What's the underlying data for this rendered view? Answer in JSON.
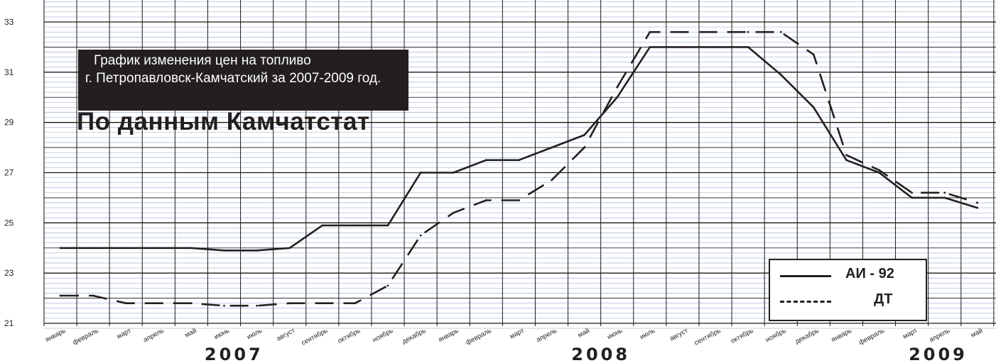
{
  "chart_data": {
    "type": "line",
    "title_line1": "График изменения цен на топливо",
    "title_line2": "г. Петропавловск-Камчатский за 2007-2009 год.",
    "subtitle": "По данным Камчатстат",
    "ylim": [
      21,
      33
    ],
    "yticks": [
      "21",
      "23",
      "25",
      "27",
      "29",
      "31",
      "33"
    ],
    "categories": [
      "январь",
      "февраль",
      "март",
      "апрель",
      "май",
      "июнь",
      "июль",
      "август",
      "сентябрь",
      "октябрь",
      "ноябрь",
      "декабрь",
      "январь",
      "февраль",
      "март",
      "апрель",
      "май",
      "июнь",
      "июль",
      "август",
      "сентябрь",
      "октябрь",
      "ноябрь",
      "декабрь",
      "январь",
      "февраль",
      "март",
      "апрель",
      "май"
    ],
    "years": [
      {
        "label": "2007",
        "at": 5.3
      },
      {
        "label": "2008",
        "at": 16.5
      },
      {
        "label": "2009",
        "at": 26.8
      }
    ],
    "series": [
      {
        "name": "АИ - 92",
        "style": "solid",
        "values": [
          24.0,
          24.0,
          24.0,
          24.0,
          24.0,
          23.9,
          23.9,
          24.0,
          24.9,
          24.9,
          24.9,
          27.0,
          27.0,
          27.5,
          27.5,
          28.0,
          28.5,
          30.0,
          32.0,
          32.0,
          32.0,
          32.0,
          30.9,
          29.6,
          27.5,
          27.0,
          26.0,
          26.0,
          25.6
        ]
      },
      {
        "name": "ДТ",
        "style": "dashed",
        "values": [
          22.1,
          22.1,
          21.8,
          21.8,
          21.8,
          21.7,
          21.7,
          21.8,
          21.8,
          21.8,
          22.5,
          24.5,
          25.4,
          25.9,
          25.9,
          26.7,
          28.0,
          30.4,
          32.6,
          32.6,
          32.6,
          32.6,
          32.6,
          31.7,
          27.7,
          27.1,
          26.2,
          26.2,
          25.8
        ]
      }
    ],
    "grid": true,
    "legend_position": "bottom-right",
    "colors": {
      "line": "#231f20",
      "grid": "#1a1a1a",
      "minor_grid": "#9fb5d6"
    }
  }
}
